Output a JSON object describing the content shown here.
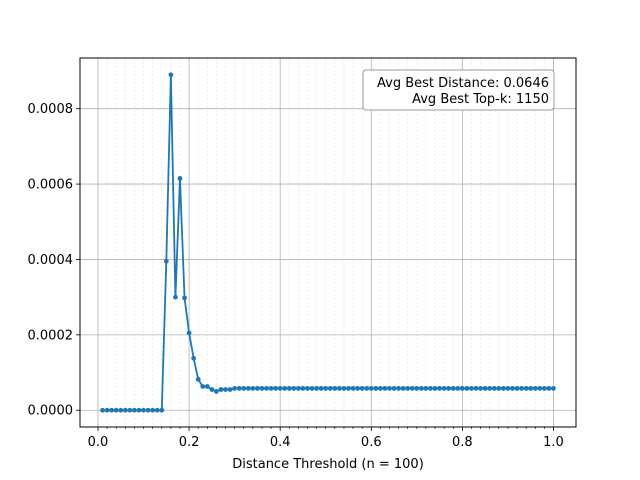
{
  "chart_data": {
    "type": "line",
    "title": "",
    "xlabel": "Distance Threshold (n = 100)",
    "ylabel": "",
    "xlim": [
      -0.0395,
      1.0495
    ],
    "ylim": [
      -4.45e-05,
      0.0009345
    ],
    "xticks": [
      0.0,
      0.2,
      0.4,
      0.6,
      0.8,
      1.0
    ],
    "xtick_labels": [
      "0.0",
      "0.2",
      "0.4",
      "0.6",
      "0.8",
      "1.0"
    ],
    "yticks": [
      0.0,
      0.0002,
      0.0004,
      0.0006,
      0.0008
    ],
    "ytick_labels": [
      "0.0000",
      "0.0002",
      "0.0004",
      "0.0006",
      "0.0008"
    ],
    "grid": true,
    "minor_grid_x": true,
    "line_color": "#1f77b4",
    "series": [
      {
        "x": [
          0.01,
          0.02,
          0.03,
          0.04,
          0.05,
          0.06,
          0.07,
          0.08,
          0.09,
          0.1,
          0.11,
          0.12,
          0.13,
          0.14,
          0.15,
          0.16,
          0.17,
          0.18,
          0.19,
          0.2,
          0.21,
          0.22,
          0.23,
          0.24,
          0.25,
          0.26,
          0.27,
          0.28,
          0.29,
          0.3,
          0.31,
          0.32,
          0.33,
          0.34,
          0.35,
          0.36,
          0.37,
          0.38,
          0.39,
          0.4,
          0.41,
          0.42,
          0.43,
          0.44,
          0.45,
          0.46,
          0.47,
          0.48,
          0.49,
          0.5,
          0.51,
          0.52,
          0.53,
          0.54,
          0.55,
          0.56,
          0.57,
          0.58,
          0.59,
          0.6,
          0.61,
          0.62,
          0.63,
          0.64,
          0.65,
          0.66,
          0.67,
          0.68,
          0.69,
          0.7,
          0.71,
          0.72,
          0.73,
          0.74,
          0.75,
          0.76,
          0.77,
          0.78,
          0.79,
          0.8,
          0.81,
          0.82,
          0.83,
          0.84,
          0.85,
          0.86,
          0.87,
          0.88,
          0.89,
          0.9,
          0.91,
          0.92,
          0.93,
          0.94,
          0.95,
          0.96,
          0.97,
          0.98,
          0.99,
          1.0
        ],
        "y": [
          0,
          0,
          0,
          0,
          0,
          0,
          0,
          0,
          0,
          0,
          0,
          0,
          0,
          0,
          0.000395,
          0.00089,
          0.0003,
          0.000615,
          0.000298,
          0.000205,
          0.000138,
          8.2e-05,
          6.3e-05,
          6.3e-05,
          5.5e-05,
          5e-05,
          5.5e-05,
          5.5e-05,
          5.5e-05,
          5.8e-05,
          5.8e-05,
          5.8e-05,
          5.8e-05,
          5.8e-05,
          5.8e-05,
          5.8e-05,
          5.8e-05,
          5.8e-05,
          5.8e-05,
          5.8e-05,
          5.8e-05,
          5.8e-05,
          5.8e-05,
          5.8e-05,
          5.8e-05,
          5.8e-05,
          5.8e-05,
          5.8e-05,
          5.8e-05,
          5.8e-05,
          5.8e-05,
          5.8e-05,
          5.8e-05,
          5.8e-05,
          5.8e-05,
          5.8e-05,
          5.8e-05,
          5.8e-05,
          5.8e-05,
          5.8e-05,
          5.8e-05,
          5.8e-05,
          5.8e-05,
          5.8e-05,
          5.8e-05,
          5.8e-05,
          5.8e-05,
          5.8e-05,
          5.8e-05,
          5.8e-05,
          5.8e-05,
          5.8e-05,
          5.8e-05,
          5.8e-05,
          5.8e-05,
          5.8e-05,
          5.8e-05,
          5.8e-05,
          5.8e-05,
          5.8e-05,
          5.8e-05,
          5.8e-05,
          5.8e-05,
          5.8e-05,
          5.8e-05,
          5.8e-05,
          5.8e-05,
          5.8e-05,
          5.8e-05,
          5.8e-05,
          5.8e-05,
          5.8e-05,
          5.8e-05,
          5.8e-05,
          5.8e-05,
          5.8e-05,
          5.8e-05,
          5.8e-05,
          5.8e-05,
          5.8e-05
        ]
      }
    ],
    "annotation_lines": [
      "Avg Best Distance: 0.0646",
      "Avg Best Top-k: 1150"
    ],
    "annotation_position": "top-right"
  }
}
